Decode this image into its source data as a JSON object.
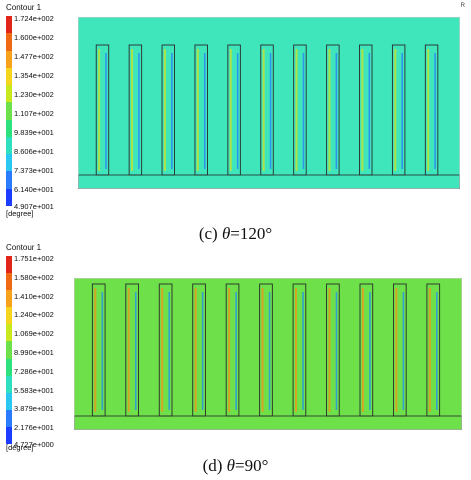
{
  "panels": [
    {
      "title": "Contour 1",
      "corner_mark": "R",
      "unit": "[degree]",
      "ticks": [
        "1.724e+002",
        "1.600e+002",
        "1.477e+002",
        "1.354e+002",
        "1.230e+002",
        "1.107e+002",
        "9.839e+001",
        "8.606e+001",
        "7.373e+001",
        "6.140e+001",
        "4.907e+001"
      ],
      "caption_prefix": "(c) ",
      "caption_symbol": "θ",
      "caption_suffix": "=120°",
      "colors": {
        "background": "#3fe6bc",
        "frame": "#2a2a2a",
        "streak": "#b8e23a",
        "blue": "#2b7bff"
      }
    },
    {
      "title": "Contour 1",
      "unit": "[degree]",
      "ticks": [
        "1.751e+002",
        "1.580e+002",
        "1.410e+002",
        "1.240e+002",
        "1.069e+002",
        "8.990e+001",
        "7.286e+001",
        "5.583e+001",
        "3.879e+001",
        "2.176e+001",
        "4.727e+000"
      ],
      "caption_prefix": "(d) ",
      "caption_symbol": "θ",
      "caption_suffix": "=90°",
      "colors": {
        "background": "#6ee04a",
        "frame": "#2a2a2a",
        "streak": "#e0a020",
        "blue": "#1f8fff"
      }
    }
  ],
  "legend_colors": [
    "#e0261a",
    "#f06a16",
    "#f6a21a",
    "#f5d61c",
    "#c9e81e",
    "#6ee04a",
    "#2fe07e",
    "#2ee0c0",
    "#2ac7f0",
    "#2b7bff",
    "#1c3cff"
  ]
}
